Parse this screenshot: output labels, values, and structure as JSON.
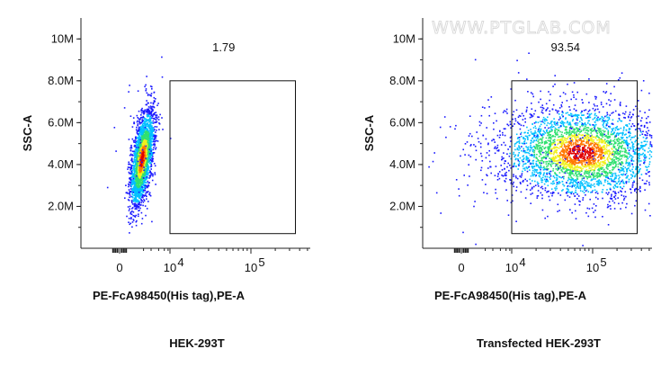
{
  "watermark": "WWW.PTGLAB.COM",
  "chart_data": [
    {
      "type": "scatter",
      "xlabel": "PE-FcA98450(His tag),PE-A",
      "ylabel": "SSC-A",
      "caption": "HEK-293T",
      "x_ticks": [
        "0",
        "10",
        "10"
      ],
      "x_tick_exponents": [
        "",
        "4",
        "5"
      ],
      "y_ticks": [
        "2.0M",
        "4.0M",
        "6.0M",
        "8.0M",
        "10M"
      ],
      "y_tick_values": [
        2.0,
        4.0,
        6.0,
        8.0,
        10.0
      ],
      "ylim": [
        0,
        11.0
      ],
      "gate": {
        "label": "1.79",
        "x_from_log": 4.0,
        "x_to_log": 5.55,
        "y_from": 0.7,
        "y_to": 8.0
      },
      "population": {
        "center_x_log": 3.25,
        "center_y": 4.3,
        "shape": "narrow-diagonal"
      },
      "colormap": [
        "#1a1aff",
        "#00c0ff",
        "#30e070",
        "#f0f020",
        "#ff7700",
        "#e00000"
      ]
    },
    {
      "type": "scatter",
      "xlabel": "PE-FcA98450(His tag),PE-A",
      "ylabel": "SSC-A",
      "caption": "Transfected HEK-293T",
      "x_ticks": [
        "0",
        "10",
        "10"
      ],
      "x_tick_exponents": [
        "",
        "4",
        "5"
      ],
      "y_ticks": [
        "2.0M",
        "4.0M",
        "6.0M",
        "8.0M",
        "10M"
      ],
      "y_tick_values": [
        2.0,
        4.0,
        6.0,
        8.0,
        10.0
      ],
      "ylim": [
        0,
        11.0
      ],
      "gate": {
        "label": "93.54",
        "x_from_log": 4.0,
        "x_to_log": 5.55,
        "y_from": 0.7,
        "y_to": 8.0
      },
      "population": {
        "center_x_log": 4.85,
        "center_y": 4.6,
        "shape": "broad"
      },
      "colormap": [
        "#1a1aff",
        "#00c0ff",
        "#30e070",
        "#f0f020",
        "#ff7700",
        "#e00000"
      ]
    }
  ]
}
